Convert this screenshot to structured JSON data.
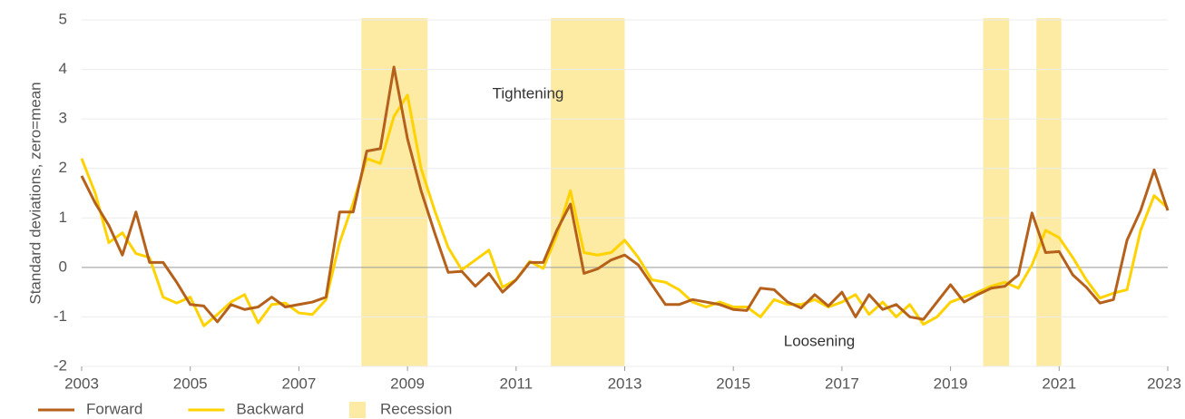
{
  "chart_data": {
    "type": "line",
    "ylabel": "Standard deviations, zero=mean",
    "annotations": [
      "Tightening",
      "Loosening"
    ],
    "xlim": [
      2003,
      2023
    ],
    "xticks": [
      2003,
      2005,
      2007,
      2009,
      2011,
      2013,
      2015,
      2017,
      2019,
      2021,
      2023
    ],
    "ylim": [
      -2,
      5
    ],
    "yticks": [
      -2,
      -1,
      0,
      1,
      2,
      3,
      4,
      5
    ],
    "grid": true,
    "recession": {
      "name": "Recession",
      "color": "#fdeba3",
      "ranges": [
        [
          2008.15,
          2009.37
        ],
        [
          2011.64,
          2013.0
        ],
        [
          2019.6,
          2020.08
        ],
        [
          2020.58,
          2021.04
        ]
      ]
    },
    "x": [
      2003,
      2003.25,
      2003.5,
      2003.75,
      2004,
      2004.25,
      2004.5,
      2004.75,
      2005,
      2005.25,
      2005.5,
      2005.75,
      2006,
      2006.25,
      2006.5,
      2006.75,
      2007,
      2007.25,
      2007.5,
      2007.75,
      2008,
      2008.25,
      2008.5,
      2008.75,
      2009,
      2009.25,
      2009.5,
      2009.75,
      2010,
      2010.25,
      2010.5,
      2010.75,
      2011,
      2011.25,
      2011.5,
      2011.75,
      2012,
      2012.25,
      2012.5,
      2012.75,
      2013,
      2013.25,
      2013.5,
      2013.75,
      2014,
      2014.25,
      2014.5,
      2014.75,
      2015,
      2015.25,
      2015.5,
      2015.75,
      2016,
      2016.25,
      2016.5,
      2016.75,
      2017,
      2017.25,
      2017.5,
      2017.75,
      2018,
      2018.25,
      2018.5,
      2018.75,
      2019,
      2019.25,
      2019.5,
      2019.75,
      2020,
      2020.25,
      2020.5,
      2020.75,
      2021,
      2021.25,
      2021.5,
      2021.75,
      2022,
      2022.25,
      2022.5,
      2022.75,
      2023
    ],
    "series": [
      {
        "name": "Forward",
        "color": "#b5611b",
        "values": [
          1.85,
          1.3,
          0.85,
          0.25,
          1.12,
          0.1,
          0.1,
          -0.3,
          -0.75,
          -0.78,
          -1.1,
          -0.75,
          -0.85,
          -0.8,
          -0.6,
          -0.8,
          -0.75,
          -0.7,
          -0.6,
          1.12,
          1.12,
          2.35,
          2.4,
          4.05,
          2.6,
          1.55,
          0.7,
          -0.1,
          -0.08,
          -0.38,
          -0.12,
          -0.5,
          -0.25,
          0.1,
          0.1,
          0.75,
          1.28,
          -0.12,
          -0.03,
          0.15,
          0.25,
          0.05,
          -0.35,
          -0.75,
          -0.75,
          -0.65,
          -0.7,
          -0.75,
          -0.85,
          -0.87,
          -0.42,
          -0.45,
          -0.7,
          -0.82,
          -0.55,
          -0.78,
          -0.5,
          -1.0,
          -0.55,
          -0.85,
          -0.75,
          -1.0,
          -1.05,
          -0.7,
          -0.35,
          -0.7,
          -0.55,
          -0.42,
          -0.38,
          -0.15,
          1.1,
          0.3,
          0.32,
          -0.15,
          -0.4,
          -0.72,
          -0.65,
          0.55,
          1.15,
          1.97,
          1.15
        ]
      },
      {
        "name": "Backward",
        "color": "#ffd200",
        "values": [
          2.2,
          1.5,
          0.5,
          0.7,
          0.28,
          0.2,
          -0.6,
          -0.72,
          -0.6,
          -1.18,
          -0.95,
          -0.7,
          -0.55,
          -1.12,
          -0.75,
          -0.72,
          -0.92,
          -0.95,
          -0.65,
          0.5,
          1.3,
          2.2,
          2.1,
          3.05,
          3.48,
          2.0,
          1.15,
          0.4,
          -0.05,
          0.15,
          0.35,
          -0.4,
          -0.25,
          0.12,
          -0.02,
          0.65,
          1.55,
          0.3,
          0.25,
          0.3,
          0.55,
          0.2,
          -0.25,
          -0.3,
          -0.45,
          -0.7,
          -0.8,
          -0.7,
          -0.8,
          -0.8,
          -1.0,
          -0.65,
          -0.75,
          -0.75,
          -0.65,
          -0.8,
          -0.7,
          -0.55,
          -0.95,
          -0.7,
          -1.0,
          -0.75,
          -1.15,
          -1.0,
          -0.7,
          -0.6,
          -0.5,
          -0.38,
          -0.3,
          -0.42,
          0.05,
          0.75,
          0.6,
          0.2,
          -0.25,
          -0.62,
          -0.52,
          -0.45,
          0.75,
          1.45,
          1.2
        ]
      }
    ]
  }
}
